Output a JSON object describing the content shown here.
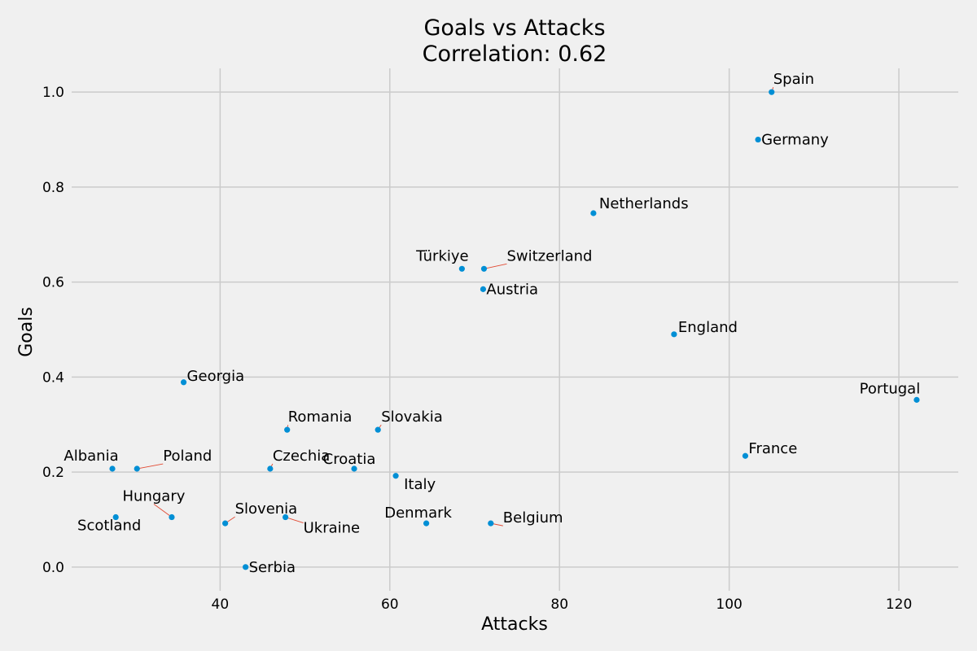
{
  "chart_data": {
    "type": "scatter",
    "title": "Goals vs Attacks",
    "subtitle": "Correlation: 0.62",
    "xlabel": "Attacks",
    "ylabel": "Goals",
    "xlim": [
      22.5,
      127
    ],
    "ylim": [
      -0.05,
      1.05
    ],
    "xticks": [
      40,
      60,
      80,
      100,
      120
    ],
    "yticks": [
      0.0,
      0.2,
      0.4,
      0.6,
      0.8,
      1.0
    ],
    "xtick_labels": [
      "40",
      "60",
      "80",
      "100",
      "120"
    ],
    "ytick_labels": [
      "0.0",
      "0.2",
      "0.4",
      "0.6",
      "0.8",
      "1.0"
    ],
    "grid": true,
    "point_color": "#008fd5",
    "leader_color": "#e24a33",
    "points": [
      {
        "name": "Spain",
        "x": 105.0,
        "y": 1.0
      },
      {
        "name": "Germany",
        "x": 103.4,
        "y": 0.9
      },
      {
        "name": "Netherlands",
        "x": 84.0,
        "y": 0.745
      },
      {
        "name": "Türkiye",
        "x": 68.5,
        "y": 0.628
      },
      {
        "name": "Switzerland",
        "x": 71.1,
        "y": 0.628
      },
      {
        "name": "Austria",
        "x": 71.0,
        "y": 0.585
      },
      {
        "name": "England",
        "x": 93.5,
        "y": 0.49
      },
      {
        "name": "Portugal",
        "x": 122.1,
        "y": 0.352
      },
      {
        "name": "Georgia",
        "x": 35.7,
        "y": 0.389
      },
      {
        "name": "Romania",
        "x": 47.9,
        "y": 0.289
      },
      {
        "name": "Slovakia",
        "x": 58.6,
        "y": 0.289
      },
      {
        "name": "France",
        "x": 101.9,
        "y": 0.234
      },
      {
        "name": "Albania",
        "x": 27.3,
        "y": 0.207
      },
      {
        "name": "Poland",
        "x": 30.2,
        "y": 0.207
      },
      {
        "name": "Czechia",
        "x": 45.9,
        "y": 0.207
      },
      {
        "name": "Croatia",
        "x": 55.8,
        "y": 0.207
      },
      {
        "name": "Italy",
        "x": 60.7,
        "y": 0.192
      },
      {
        "name": "Hungary",
        "x": 34.3,
        "y": 0.105
      },
      {
        "name": "Scotland",
        "x": 27.7,
        "y": 0.105
      },
      {
        "name": "Slovenia",
        "x": 40.6,
        "y": 0.092
      },
      {
        "name": "Ukraine",
        "x": 47.7,
        "y": 0.105
      },
      {
        "name": "Denmark",
        "x": 64.3,
        "y": 0.092
      },
      {
        "name": "Belgium",
        "x": 71.9,
        "y": 0.092
      },
      {
        "name": "Serbia",
        "x": 43.0,
        "y": 0.0
      }
    ]
  }
}
